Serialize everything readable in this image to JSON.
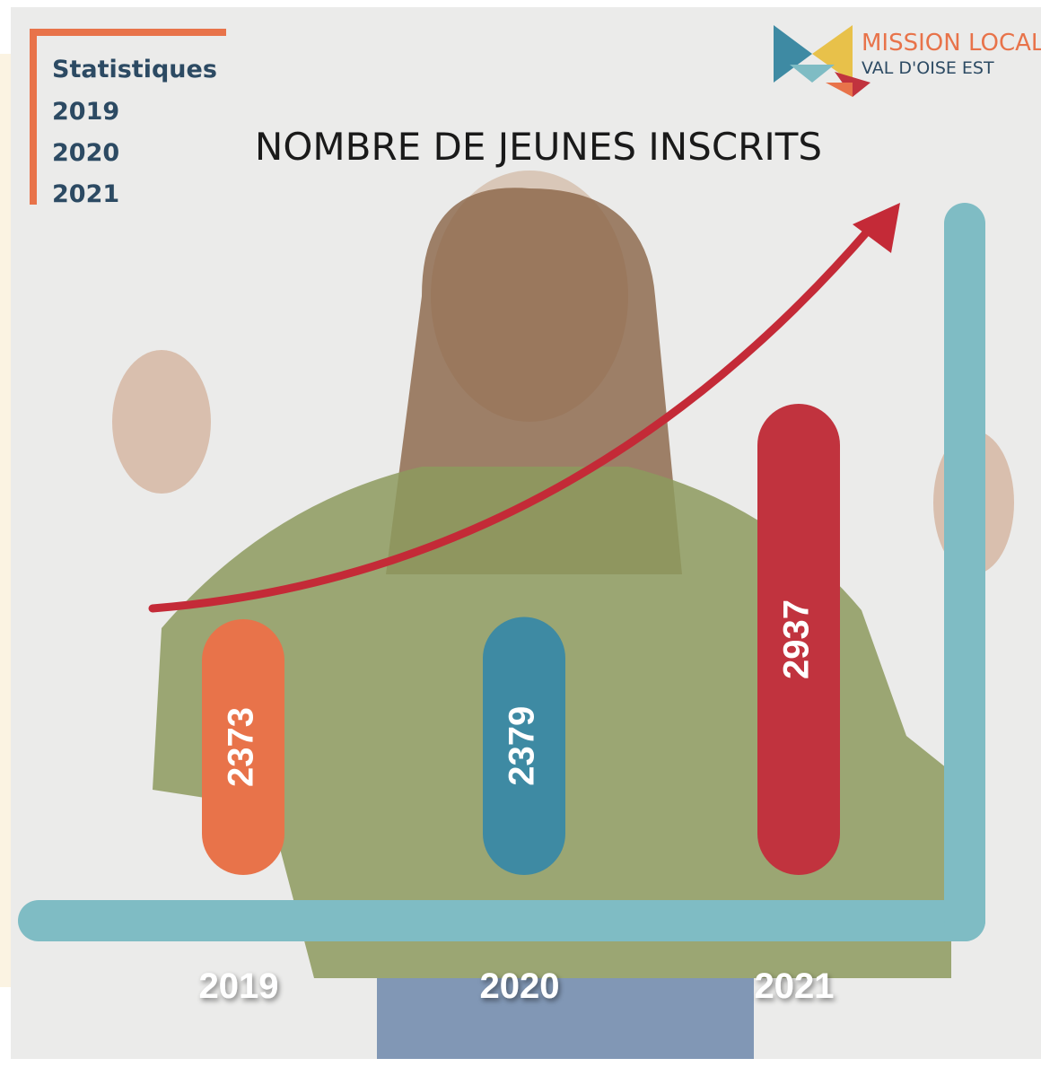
{
  "header": {
    "label": "Statistiques",
    "years": [
      "2019",
      "2020",
      "2021"
    ]
  },
  "logo": {
    "name": "MISSION LOCALE",
    "area": "VAL D'OISE EST"
  },
  "chart_data": {
    "type": "bar",
    "title": "NOMBRE DE JEUNES INSCRITS",
    "categories": [
      "2019",
      "2020",
      "2021"
    ],
    "values": [
      2373,
      2379,
      2937
    ],
    "colors": [
      "#e8734a",
      "#3e8aa3",
      "#c1333e"
    ],
    "axis_color": "#7fbcc4",
    "trend_color": "#c42a37"
  }
}
